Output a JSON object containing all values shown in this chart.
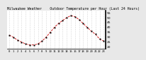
{
  "title": "Milwaukee Weather    Outdoor Temperature per Hour (Last 24 Hours)",
  "hours": [
    0,
    1,
    2,
    3,
    4,
    5,
    6,
    7,
    8,
    9,
    10,
    11,
    12,
    13,
    14,
    15,
    16,
    17,
    18,
    19,
    20,
    21,
    22,
    23
  ],
  "temps": [
    32,
    30,
    27,
    25,
    23,
    22,
    22,
    23,
    26,
    30,
    35,
    40,
    44,
    47,
    50,
    52,
    51,
    48,
    44,
    40,
    36,
    33,
    28,
    26
  ],
  "line_color": "#cc0000",
  "marker_color": "#000000",
  "bg_color": "#e8e8e8",
  "plot_bg_color": "#ffffff",
  "grid_color": "#aaaaaa",
  "ylim": [
    18,
    57
  ],
  "ytick_vals": [
    20,
    25,
    30,
    35,
    40,
    45,
    50,
    55
  ],
  "ylabel_fontsize": 3.2,
  "xlabel_fontsize": 2.8,
  "title_fontsize": 3.5,
  "linewidth": 0.6,
  "markersize": 1.4
}
